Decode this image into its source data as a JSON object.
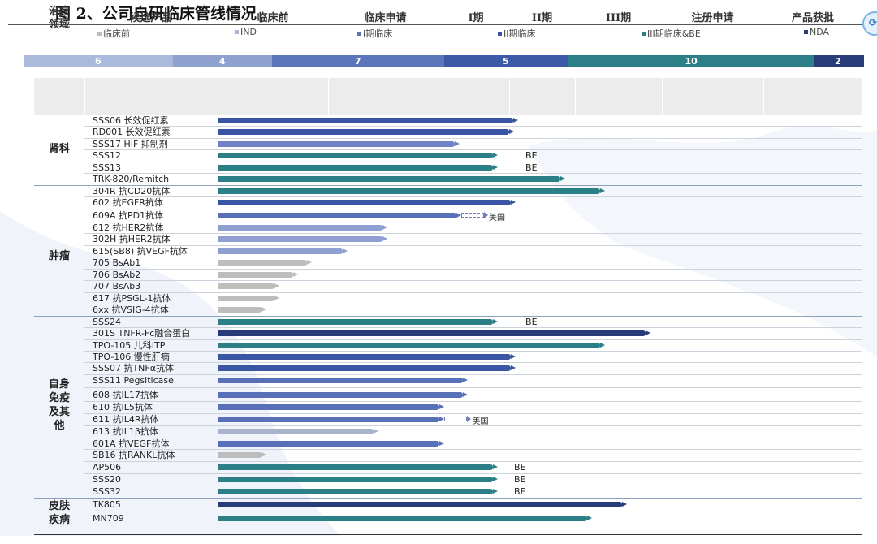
{
  "header": {
    "title": "图 2、公司自研临床管线情况"
  },
  "legend": [
    {
      "label": "临床前",
      "color": "#bdbdbd"
    },
    {
      "label": "IND",
      "color": "#a9b3cc"
    },
    {
      "label": "I期临床",
      "color": "#5c72b4"
    },
    {
      "label": "II期临床",
      "color": "#3653a1"
    },
    {
      "label": "III期临床&BE",
      "color": "#2b7f86"
    },
    {
      "label": "NDA",
      "color": "#283c7a"
    }
  ],
  "counts": [
    {
      "value": "6",
      "color": "#aabadb"
    },
    {
      "value": "4",
      "color": "#8fa2cf"
    },
    {
      "value": "7",
      "color": "#5d75bb"
    },
    {
      "value": "5",
      "color": "#3d5aa8"
    },
    {
      "value": "10",
      "color": "#2d7f87"
    },
    {
      "value": "2",
      "color": "#283c7a"
    }
  ],
  "table_header": {
    "area": "治疗\n领域",
    "candidate": "候选产品",
    "stages": [
      "临床前",
      "临床申请",
      "I期",
      "II期",
      "III期",
      "注册申请",
      "产品获批"
    ]
  },
  "groups": [
    {
      "label": "肾科"
    },
    {
      "label": "肿瘤"
    },
    {
      "label": "自身\n免疫\n及其\n他"
    },
    {
      "label": "皮肤\n疾病"
    }
  ],
  "chart_data": {
    "type": "bar",
    "orientation": "horizontal",
    "title": "图 2、公司自研临床管线情况",
    "x_axis": [
      "临床前",
      "临床申请",
      "I期",
      "II期",
      "III期",
      "注册申请",
      "产品获批"
    ],
    "stage_counts": [
      {
        "stage": "临床前",
        "count": 6
      },
      {
        "stage": "IND",
        "count": 4
      },
      {
        "stage": "I期临床",
        "count": 7
      },
      {
        "stage": "II期临床",
        "count": 5
      },
      {
        "stage": "III期临床&BE",
        "count": 10
      },
      {
        "stage": "NDA",
        "count": 2
      }
    ],
    "rows": [
      {
        "group": "肾科",
        "candidate": "SSS06 长效促红素",
        "progress": 3.13,
        "color": "#3a55a4",
        "note": ""
      },
      {
        "group": "肾科",
        "candidate": "RD001 长效促红素",
        "progress": 3.07,
        "color": "#3a55a4",
        "note": ""
      },
      {
        "group": "肾科",
        "candidate": "SSS17 HIF 抑制剂",
        "progress": 2.25,
        "color": "#6f82c4",
        "note": ""
      },
      {
        "group": "肾科",
        "candidate": "SSS12",
        "progress": 2.83,
        "color": "#2b7f86",
        "note": "BE"
      },
      {
        "group": "肾科",
        "candidate": "SSS13",
        "progress": 2.83,
        "color": "#2b7f86",
        "note": "BE"
      },
      {
        "group": "肾科",
        "candidate": "TRK-820/Remitch",
        "progress": 3.85,
        "color": "#2b7f86",
        "note": ""
      },
      {
        "group": "肿瘤",
        "candidate": "304R 抗CD20抗体",
        "progress": 4.35,
        "color": "#2b7f86",
        "note": ""
      },
      {
        "group": "肿瘤",
        "candidate": "602  抗EGFR抗体",
        "progress": 3.1,
        "color": "#3a55a4",
        "note": ""
      },
      {
        "group": "肿瘤",
        "candidate": "609A 抗PD1抗体",
        "progress": 2.28,
        "color": "#5870b8",
        "note": "美国"
      },
      {
        "group": "肿瘤",
        "candidate": "612  抗HER2抗体",
        "progress": 1.52,
        "color": "#8f9fd2",
        "note": ""
      },
      {
        "group": "肿瘤",
        "candidate": "302H  抗HER2抗体",
        "progress": 1.52,
        "color": "#8f9fd2",
        "note": ""
      },
      {
        "group": "肿瘤",
        "candidate": "615(SB8) 抗VEGF抗体",
        "progress": 1.17,
        "color": "#8f9fd2",
        "note": ""
      },
      {
        "group": "肿瘤",
        "candidate": "705  BsAb1",
        "progress": 0.85,
        "color": "#bdbdbd",
        "note": ""
      },
      {
        "group": "肿瘤",
        "candidate": "706  BsAb2",
        "progress": 0.73,
        "color": "#bdbdbd",
        "note": ""
      },
      {
        "group": "肿瘤",
        "candidate": "707  BsAb3",
        "progress": 0.56,
        "color": "#bdbdbd",
        "note": ""
      },
      {
        "group": "肿瘤",
        "candidate": "617  抗PSGL-1抗体",
        "progress": 0.56,
        "color": "#bdbdbd",
        "note": ""
      },
      {
        "group": "肿瘤",
        "candidate": "6xx  抗VSIG-4抗体",
        "progress": 0.44,
        "color": "#bdbdbd",
        "note": ""
      },
      {
        "group": "自身免疫及其他",
        "candidate": "SSS24",
        "progress": 2.83,
        "color": "#2b7f86",
        "note": "BE"
      },
      {
        "group": "自身免疫及其他",
        "candidate": "301S TNFR-Fc融合蛋白",
        "progress": 4.87,
        "color": "#283c7a",
        "note": ""
      },
      {
        "group": "自身免疫及其他",
        "candidate": "TPO-105 儿科ITP",
        "progress": 4.35,
        "color": "#2b7f86",
        "note": ""
      },
      {
        "group": "自身免疫及其他",
        "candidate": "TPO-106 慢性肝病",
        "progress": 3.1,
        "color": "#3a55a4",
        "note": ""
      },
      {
        "group": "自身免疫及其他",
        "candidate": "SSS07  抗TNFα抗体",
        "progress": 3.1,
        "color": "#3a55a4",
        "note": ""
      },
      {
        "group": "自身免疫及其他",
        "candidate": "SSS11  Pegsiticase",
        "progress": 2.38,
        "color": "#5870b8",
        "note": ""
      },
      {
        "group": "自身免疫及其他",
        "candidate": "608 抗IL17抗体",
        "progress": 2.38,
        "color": "#5870b8",
        "note": ""
      },
      {
        "group": "自身免疫及其他",
        "candidate": "610 抗IL5抗体",
        "progress": 2.03,
        "color": "#5870b8",
        "note": ""
      },
      {
        "group": "自身免疫及其他",
        "candidate": "611 抗IL4R抗体",
        "progress": 2.03,
        "color": "#5870b8",
        "note": "美国"
      },
      {
        "group": "自身免疫及其他",
        "candidate": "613 抗IL1β抗体",
        "progress": 1.44,
        "color": "#a9b3cc",
        "note": ""
      },
      {
        "group": "自身免疫及其他",
        "candidate": "601A  抗VEGF抗体",
        "progress": 2.03,
        "color": "#5870b8",
        "note": ""
      },
      {
        "group": "自身免疫及其他",
        "candidate": "SB16 抗RANKL抗体",
        "progress": 0.44,
        "color": "#bdbdbd",
        "note": ""
      },
      {
        "group": "自身免疫及其他",
        "candidate": "AP506",
        "progress": 2.83,
        "color": "#2b7f86",
        "note": "BE"
      },
      {
        "group": "自身免疫及其他",
        "candidate": "SSS20",
        "progress": 2.83,
        "color": "#2b7f86",
        "note": "BE"
      },
      {
        "group": "自身免疫及其他",
        "candidate": "SSS32",
        "progress": 2.83,
        "color": "#2b7f86",
        "note": "BE"
      },
      {
        "group": "皮肤疾病",
        "candidate": "TK805",
        "progress": 4.6,
        "color": "#283c7a",
        "note": ""
      },
      {
        "group": "皮肤疾病",
        "candidate": "MN709",
        "progress": 4.2,
        "color": "#2b7f86",
        "note": ""
      }
    ]
  }
}
